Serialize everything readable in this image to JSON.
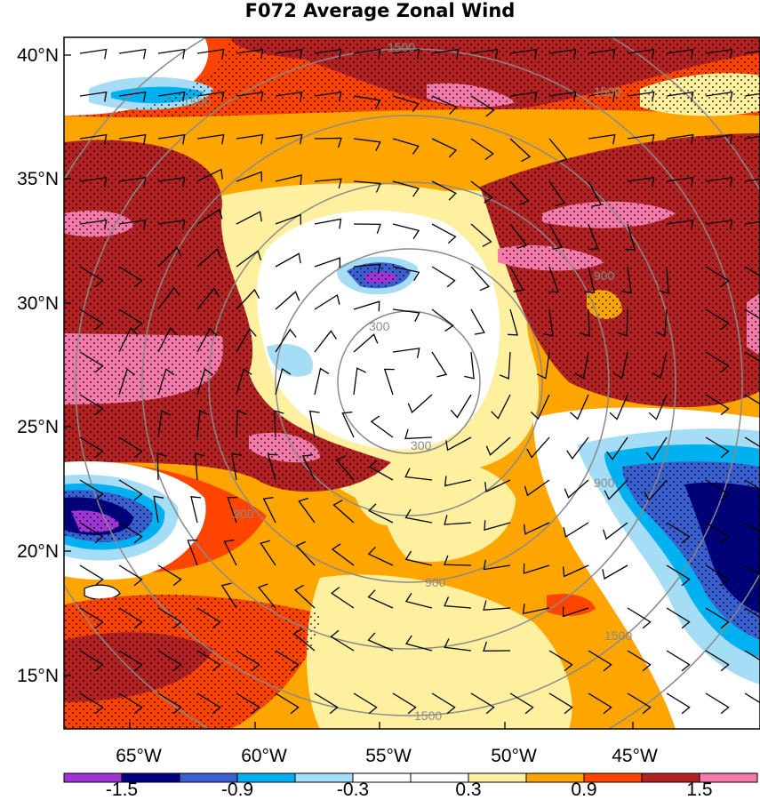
{
  "title": "F072 Average Zonal Wind",
  "lat_labels": [
    "40°N",
    "35°N",
    "30°N",
    "25°N",
    "20°N",
    "15°N"
  ],
  "lon_labels": [
    "65°W",
    "60°W",
    "55°W",
    "50°W",
    "45°W"
  ],
  "colorbar": {
    "colors": [
      "#a035d6",
      "#000080",
      "#3a5fd0",
      "#00b0f0",
      "#a5dcf6",
      "#ffffff",
      "#ffffff",
      "#fff0a0",
      "#ffa500",
      "#ff4400",
      "#b22222",
      "#f47aaa"
    ],
    "tick_labels": [
      "-1.5",
      "-0.9",
      "-0.3",
      "0.3",
      "0.9",
      "1.5"
    ]
  },
  "range_rings": {
    "color": "#8a8a8a",
    "labels": [
      "300",
      "300",
      "900",
      "900",
      "900",
      "900",
      "1500",
      "1500",
      "1500",
      "1500",
      "1500"
    ]
  }
}
